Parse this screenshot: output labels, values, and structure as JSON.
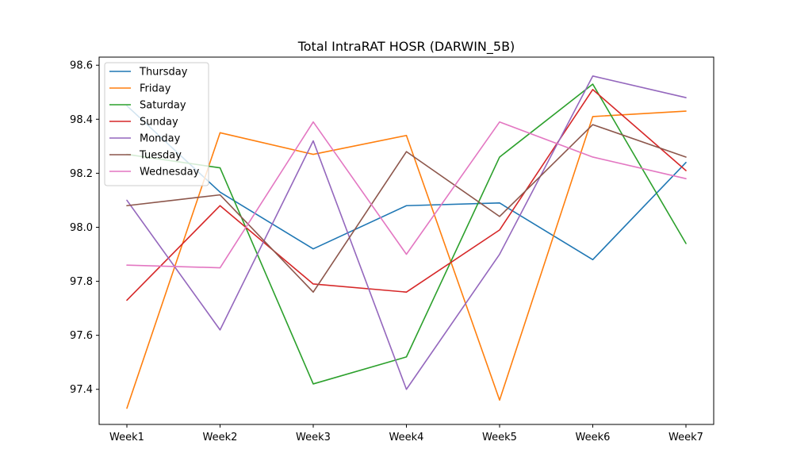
{
  "chart_data": {
    "type": "line",
    "title": "Total IntraRAT HOSR (DARWIN_5B)",
    "xlabel": "",
    "ylabel": "",
    "categories": [
      "Week1",
      "Week2",
      "Week3",
      "Week4",
      "Week5",
      "Week6",
      "Week7"
    ],
    "yticks": [
      "97.4",
      "97.6",
      "97.8",
      "98.0",
      "98.2",
      "98.4",
      "98.6"
    ],
    "ylim": [
      97.27,
      98.63
    ],
    "grid": false,
    "legend_position": "top-left",
    "series": [
      {
        "name": "Thursday",
        "color": "#1f77b4",
        "values": [
          98.45,
          98.13,
          97.92,
          98.08,
          98.09,
          97.88,
          98.24
        ]
      },
      {
        "name": "Friday",
        "color": "#ff7f0e",
        "values": [
          97.33,
          98.35,
          98.27,
          98.34,
          97.36,
          98.41,
          98.43
        ]
      },
      {
        "name": "Saturday",
        "color": "#2ca02c",
        "values": [
          98.27,
          98.22,
          97.42,
          97.52,
          98.26,
          98.53,
          97.94
        ]
      },
      {
        "name": "Sunday",
        "color": "#d62728",
        "values": [
          97.73,
          98.08,
          97.79,
          97.76,
          97.99,
          98.51,
          98.21
        ]
      },
      {
        "name": "Monday",
        "color": "#9467bd",
        "values": [
          98.1,
          97.62,
          98.32,
          97.4,
          97.9,
          98.56,
          98.48
        ]
      },
      {
        "name": "Tuesday",
        "color": "#8c564b",
        "values": [
          98.08,
          98.12,
          97.76,
          98.28,
          98.04,
          98.38,
          98.26
        ]
      },
      {
        "name": "Wednesday",
        "color": "#e377c2",
        "values": [
          97.86,
          97.85,
          98.39,
          97.9,
          98.39,
          98.26,
          98.18
        ]
      }
    ]
  }
}
